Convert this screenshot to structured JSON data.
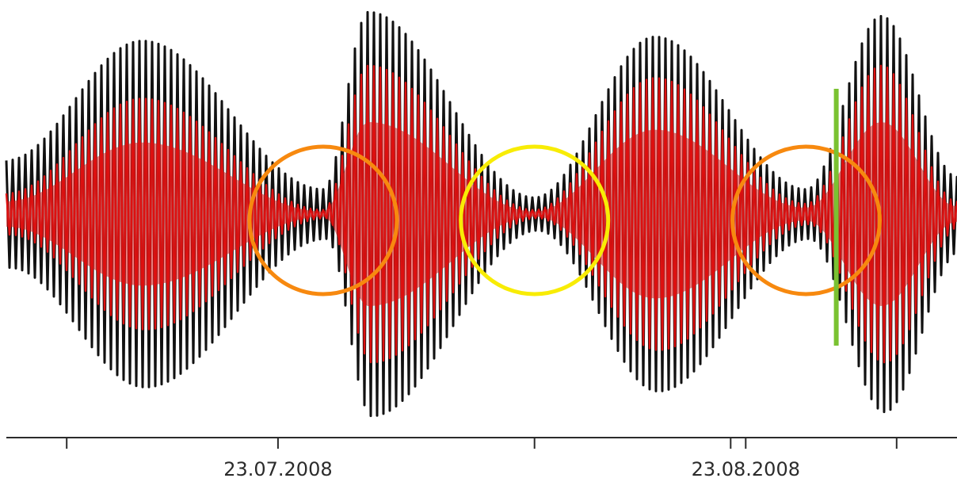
{
  "chart_data": {
    "type": "line",
    "title": "",
    "xlabel": "",
    "ylabel": "",
    "x_tick_labels": [
      {
        "date": "2008-07-23",
        "label": "23.07.2008"
      },
      {
        "date": "2008-08-23",
        "label": "23.08.2008"
      }
    ],
    "x_minor_ticks": [
      "2008-07-09",
      "2008-07-23",
      "2008-08-09",
      "2008-08-22",
      "2008-08-23",
      "2008-09-02"
    ],
    "xlim": [
      "2008-07-05",
      "2008-09-06"
    ],
    "ylim": [
      -1.0,
      1.0
    ],
    "grid": false,
    "legend": "none",
    "series": [
      {
        "color": "#111111",
        "oscillation_count": 150,
        "envelope_peaks": [
          {
            "date": "2008-07-14",
            "amplitude": 0.84
          },
          {
            "date": "2008-07-29",
            "amplitude": 0.98
          },
          {
            "date": "2008-08-17",
            "amplitude": 0.86
          },
          {
            "date": "2008-09-01",
            "amplitude": 0.96
          }
        ],
        "envelope_minima": [
          {
            "date": "2008-07-05",
            "amplitude": 0.26
          },
          {
            "date": "2008-07-26",
            "amplitude": 0.12
          },
          {
            "date": "2008-08-09",
            "amplitude": 0.08
          },
          {
            "date": "2008-08-27",
            "amplitude": 0.12
          },
          {
            "date": "2008-09-06",
            "amplitude": 0.18
          }
        ]
      },
      {
        "color": "#dd1111",
        "oscillation_count": 150,
        "envelope_peaks": [
          {
            "date": "2008-07-14",
            "amplitude": 0.56
          },
          {
            "date": "2008-07-29",
            "amplitude": 0.72
          },
          {
            "date": "2008-08-17",
            "amplitude": 0.66
          },
          {
            "date": "2008-09-01",
            "amplitude": 0.72
          }
        ],
        "envelope_minima": [
          {
            "date": "2008-07-05",
            "amplitude": 0.1
          },
          {
            "date": "2008-07-26",
            "amplitude": 0.02
          },
          {
            "date": "2008-08-09",
            "amplitude": 0.02
          },
          {
            "date": "2008-08-27",
            "amplitude": 0.05
          },
          {
            "date": "2008-09-06",
            "amplitude": 0.06
          }
        ]
      }
    ],
    "annotations": [
      {
        "shape": "circle",
        "date": "2008-07-26",
        "color": "#f7890f"
      },
      {
        "shape": "circle",
        "date": "2008-08-09",
        "color": "#f8ec05"
      },
      {
        "shape": "circle",
        "date": "2008-08-27",
        "color": "#f7890f"
      },
      {
        "shape": "vertical-line",
        "date": "2008-08-29",
        "color": "#7ac231"
      }
    ]
  }
}
